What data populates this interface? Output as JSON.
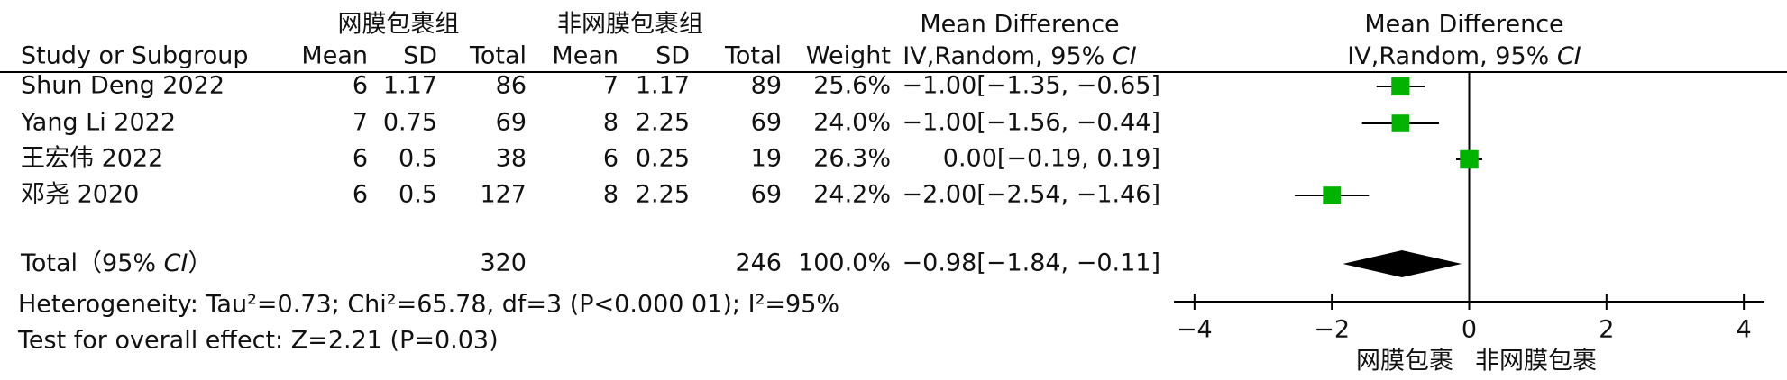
{
  "chart_data": {
    "type": "forest",
    "group_headers": [
      "网膜包裹组",
      "非网膜包裹组"
    ],
    "effect_header": "Mean Difference",
    "effect_subheader": [
      "IV,Random, 95% ",
      "CI"
    ],
    "plot_header": "Mean Difference",
    "plot_subheader": [
      "IV,Random, 95% ",
      "CI"
    ],
    "columns": [
      "Study or Subgroup",
      "Mean",
      "SD",
      "Total",
      "Mean",
      "SD",
      "Total",
      "Weight"
    ],
    "studies": [
      {
        "name": "Shun Deng 2022",
        "mean1": 6,
        "sd1": 1.17,
        "n1": 86,
        "mean2": 7,
        "sd2": 1.17,
        "n2": 89,
        "weight": 25.6,
        "weight_label": "25.6%",
        "md": -1.0,
        "lo": -1.35,
        "hi": -0.65,
        "ci_label": "−1.00[−1.35, −0.65]"
      },
      {
        "name": "Yang Li 2022",
        "mean1": 7,
        "sd1": 0.75,
        "n1": 69,
        "mean2": 8,
        "sd2": 2.25,
        "n2": 69,
        "weight": 24.0,
        "weight_label": "24.0%",
        "md": -1.0,
        "lo": -1.56,
        "hi": -0.44,
        "ci_label": "−1.00[−1.56, −0.44]"
      },
      {
        "name": "王宏伟 2022",
        "mean1": 6,
        "sd1": 0.5,
        "n1": 38,
        "mean2": 6,
        "sd2": 0.25,
        "n2": 19,
        "weight": 26.3,
        "weight_label": "26.3%",
        "md": 0.0,
        "lo": -0.19,
        "hi": 0.19,
        "ci_label": "0.00[−0.19, 0.19]"
      },
      {
        "name": "邓尧 2020",
        "mean1": 6,
        "sd1": 0.5,
        "n1": 127,
        "mean2": 8,
        "sd2": 2.25,
        "n2": 69,
        "weight": 24.2,
        "weight_label": "24.2%",
        "md": -2.0,
        "lo": -2.54,
        "hi": -1.46,
        "ci_label": "−2.00[−2.54, −1.46]"
      }
    ],
    "total": {
      "label": [
        "Total（95% ",
        "CI",
        "）"
      ],
      "n1": 320,
      "n2": 246,
      "weight_label": "100.0%",
      "md": -0.98,
      "lo": -1.84,
      "hi": -0.11,
      "ci_label": "−0.98[−1.84, −0.11]"
    },
    "heterogeneity": "Heterogeneity: Tau²=0.73;  Chi²=65.78, df=3 (P<0.000 01); I²=95%",
    "overall_effect": "Test for overall effect: Z=2.21 (P=0.03)",
    "xlim": [
      -4.3,
      4.3
    ],
    "xticks": [
      {
        "value": -4,
        "label": "−4"
      },
      {
        "value": -2,
        "label": "−2"
      },
      0,
      2,
      4
    ],
    "favours": [
      "网膜包裹",
      "非网膜包裹"
    ],
    "marker_color": "#00b300"
  }
}
